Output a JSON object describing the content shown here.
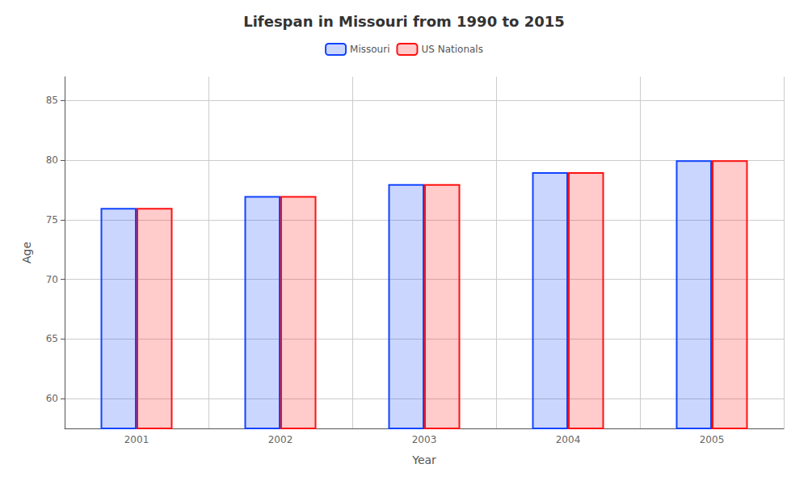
{
  "chart_data": {
    "type": "bar",
    "title": "Lifespan in Missouri from 1990 to 2015",
    "x_label": "Year",
    "y_label": "Age",
    "categories": [
      2001,
      2002,
      2003,
      2004,
      2005
    ],
    "series": [
      {
        "name": "Missouri",
        "color": "#1144ff",
        "values": [
          76,
          77,
          78,
          79,
          80
        ]
      },
      {
        "name": "US Nationals",
        "color": "#ff1111",
        "values": [
          76,
          77,
          78,
          79,
          80
        ]
      }
    ],
    "ylim": [
      57.5,
      87
    ],
    "yticks": [
      60,
      65,
      70,
      75,
      80,
      85
    ],
    "grid": true,
    "legend": "top"
  }
}
